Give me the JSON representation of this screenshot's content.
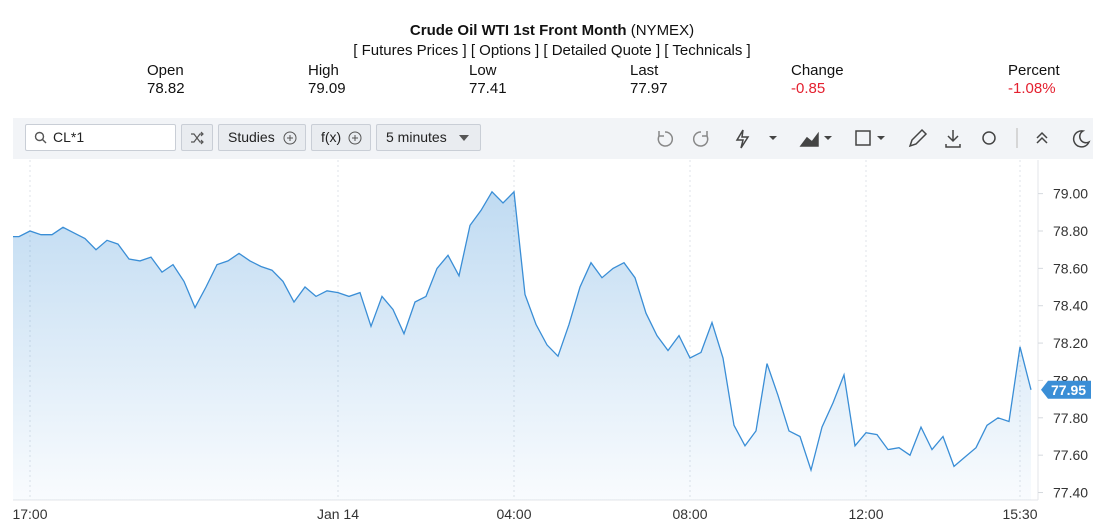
{
  "header": {
    "title": "Crude Oil WTI 1st Front Month",
    "exchange": "(NYMEX)",
    "links": [
      "[ Futures Prices ]",
      "[ Options ]",
      "[ Detailed Quote ]",
      "[ Technicals ]"
    ]
  },
  "quote": [
    {
      "label": "Open",
      "value": "78.82"
    },
    {
      "label": "High",
      "value": "79.09"
    },
    {
      "label": "Low",
      "value": "77.41"
    },
    {
      "label": "Last",
      "value": "77.97"
    },
    {
      "label": "Change",
      "value": "-0.85"
    },
    {
      "label": "Percent",
      "value": "-1.08%"
    }
  ],
  "toolbar": {
    "symbol": "CL*1",
    "studies": "Studies",
    "function": "f(x)",
    "interval": "5 minutes"
  },
  "chart_data": {
    "type": "area",
    "color": "#3a8ed6",
    "grid": "x",
    "x": [
      "16:45",
      "17:00",
      "17:15",
      "17:30",
      "17:45",
      "18:00",
      "18:15",
      "18:30",
      "18:45",
      "19:00",
      "19:15",
      "19:30",
      "19:45",
      "20:00",
      "20:15",
      "20:30",
      "20:45",
      "21:00",
      "21:15",
      "21:30",
      "21:45",
      "22:00",
      "22:15",
      "22:30",
      "22:45",
      "23:00",
      "23:15",
      "23:30",
      "23:45",
      "00:00",
      "00:15",
      "00:30",
      "00:45",
      "01:00",
      "01:15",
      "01:30",
      "01:45",
      "02:00",
      "02:15",
      "02:30",
      "02:45",
      "03:00",
      "03:15",
      "03:30",
      "03:45",
      "04:00",
      "04:15",
      "04:30",
      "04:45",
      "05:00",
      "05:15",
      "05:30",
      "05:45",
      "06:00",
      "06:15",
      "06:30",
      "06:45",
      "07:00",
      "07:15",
      "07:30",
      "07:45",
      "08:00",
      "08:15",
      "08:30",
      "08:45",
      "09:00",
      "09:15",
      "09:30",
      "09:45",
      "10:00",
      "10:15",
      "10:30",
      "10:45",
      "11:00",
      "11:15",
      "11:30",
      "11:45",
      "12:00",
      "12:15",
      "12:30",
      "12:45",
      "13:00",
      "13:15",
      "13:30",
      "13:45",
      "14:00",
      "14:15",
      "14:30",
      "14:45",
      "15:00",
      "15:15",
      "15:30",
      "15:45"
    ],
    "values": [
      78.77,
      78.8,
      78.78,
      78.78,
      78.82,
      78.79,
      78.76,
      78.7,
      78.75,
      78.73,
      78.65,
      78.64,
      78.66,
      78.58,
      78.62,
      78.53,
      78.39,
      78.5,
      78.62,
      78.64,
      78.68,
      78.64,
      78.61,
      78.59,
      78.53,
      78.42,
      78.5,
      78.45,
      78.48,
      78.47,
      78.45,
      78.47,
      78.29,
      78.45,
      78.38,
      78.25,
      78.42,
      78.45,
      78.6,
      78.67,
      78.56,
      78.83,
      78.91,
      79.01,
      78.95,
      79.01,
      78.46,
      78.3,
      78.19,
      78.13,
      78.3,
      78.5,
      78.63,
      78.55,
      78.6,
      78.63,
      78.55,
      78.36,
      78.24,
      78.16,
      78.24,
      78.12,
      78.15,
      78.31,
      78.12,
      77.76,
      77.65,
      77.73,
      78.09,
      77.92,
      77.73,
      77.7,
      77.52,
      77.75,
      77.88,
      78.03,
      77.65,
      77.72,
      77.71,
      77.63,
      77.64,
      77.6,
      77.75,
      77.63,
      77.7,
      77.54,
      77.59,
      77.64,
      77.76,
      77.8,
      77.78,
      78.18,
      77.95
    ],
    "last_value_label": "77.95",
    "ylim": [
      77.36,
      79.18
    ],
    "yticks": [
      {
        "value": 77.4,
        "label": "77.40"
      },
      {
        "value": 77.6,
        "label": "77.60"
      },
      {
        "value": 77.8,
        "label": "77.80"
      },
      {
        "value": 78,
        "label": "78.00"
      },
      {
        "value": 78.2,
        "label": "78.20"
      },
      {
        "value": 78.4,
        "label": "78.40"
      },
      {
        "value": 78.6,
        "label": "78.60"
      },
      {
        "value": 78.8,
        "label": "78.80"
      },
      {
        "value": 79,
        "label": "79.00"
      }
    ],
    "xticks": [
      "17:00",
      {
        "value": "00:00",
        "label": "Jan 14"
      },
      "04:00",
      "08:00",
      "12:00",
      "15:30"
    ]
  }
}
